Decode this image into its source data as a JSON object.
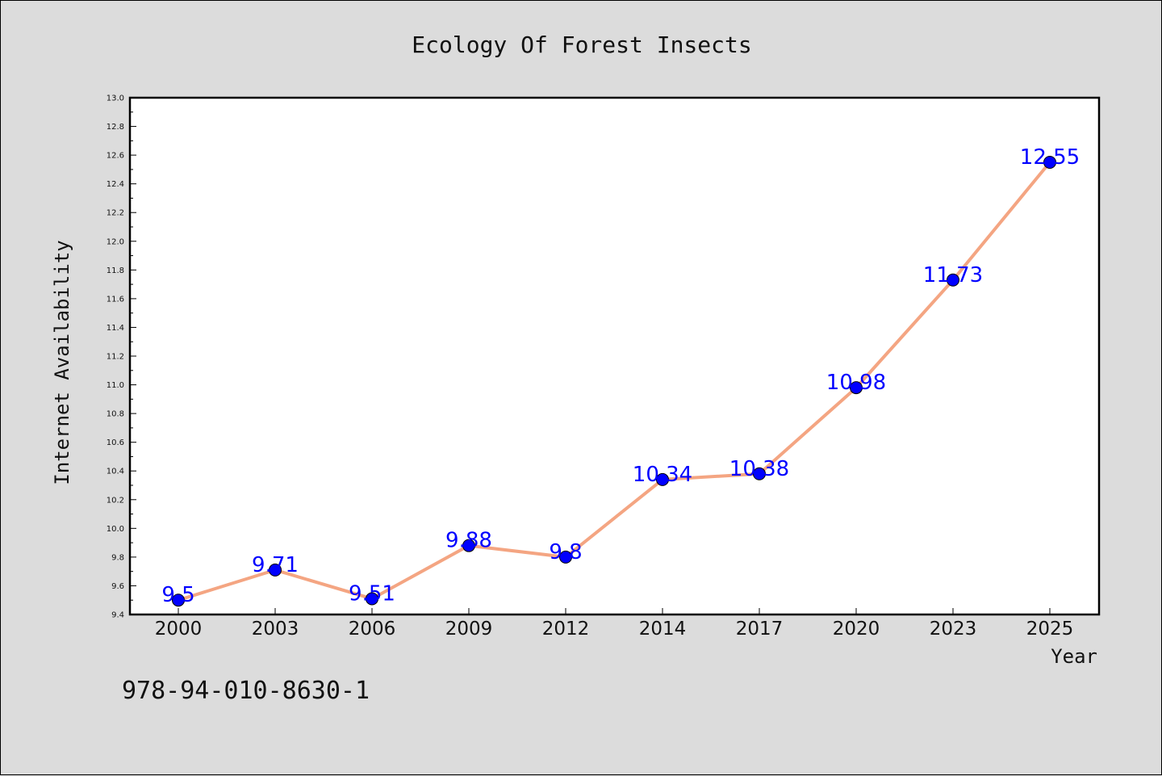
{
  "chart_data": {
    "type": "line",
    "title": "Ecology Of Forest Insects",
    "xlabel": "Year",
    "ylabel": "Internet Availability",
    "categories": [
      "2000",
      "2003",
      "2006",
      "2009",
      "2012",
      "2014",
      "2017",
      "2020",
      "2023",
      "2025"
    ],
    "series": [
      {
        "values": [
          9.5,
          9.71,
          9.51,
          9.88,
          9.8,
          10.34,
          10.38,
          10.98,
          11.73,
          12.55
        ],
        "data_labels": [
          "9.5",
          "9.71",
          "9.51",
          "9.88",
          "9.8",
          "10.34",
          "10.38",
          "10.98",
          "11.73",
          "12.55"
        ],
        "line_color": "#f4a582",
        "marker_color": "#0000ff"
      }
    ],
    "ylim": [
      9.4,
      13.0
    ],
    "yticks": [
      "9.4",
      "9.6",
      "9.8",
      "10.0",
      "10.2",
      "10.4",
      "10.6",
      "10.8",
      "11.0",
      "11.2",
      "11.4",
      "11.6",
      "11.8",
      "12.0",
      "12.2",
      "12.4",
      "12.6",
      "12.8",
      "13.0"
    ],
    "grid": false,
    "label_color": "#0000ff"
  },
  "footer": {
    "isbn": "978-94-010-8630-1"
  }
}
